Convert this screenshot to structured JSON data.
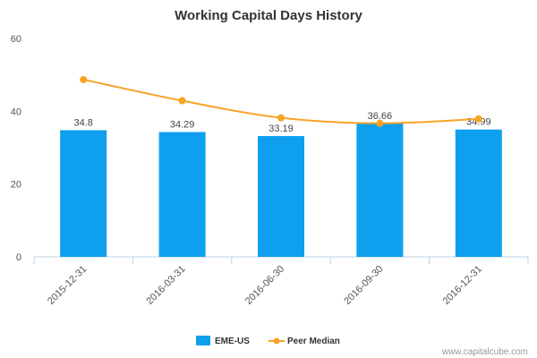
{
  "chart_data": {
    "type": "bar",
    "title": "Working Capital Days History",
    "categories": [
      "2015-12-31",
      "2016-03-31",
      "2016-06-30",
      "2016-09-30",
      "2016-12-31"
    ],
    "series": [
      {
        "name": "EME-US",
        "type": "bar",
        "values": [
          34.8,
          34.29,
          33.19,
          36.66,
          34.99
        ],
        "data_labels": [
          "34.8",
          "34.29",
          "33.19",
          "36.66",
          "34.99"
        ],
        "color": "#0ea0ee"
      },
      {
        "name": "Peer Median",
        "type": "line",
        "values": [
          48.7,
          42.9,
          38.2,
          36.7,
          37.9
        ],
        "color": "#f7a325"
      }
    ],
    "ylim": [
      0,
      60
    ],
    "yticks": [
      "0",
      "20",
      "40",
      "60"
    ],
    "grid": false,
    "legend_position": "bottom-center",
    "credit": "www.capitalcube.com"
  }
}
